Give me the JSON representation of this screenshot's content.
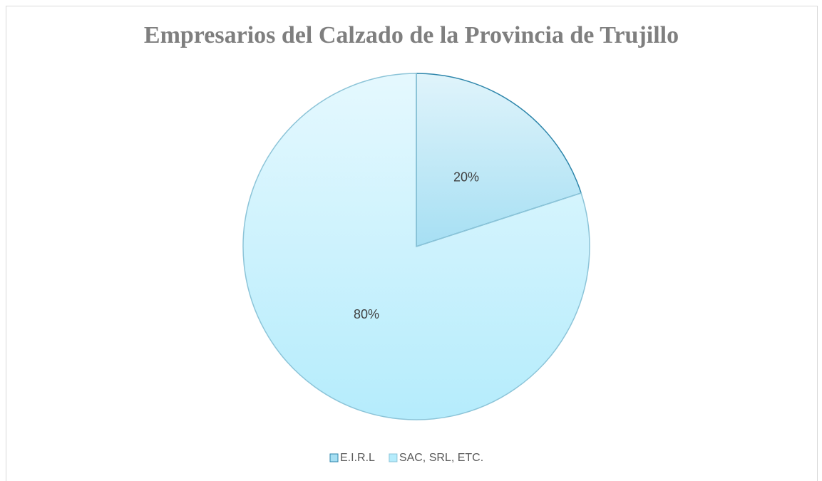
{
  "chart_data": {
    "type": "pie",
    "title": "Empresarios del Calzado de la Provincia de Trujillo",
    "categories": [
      "E.I.R.L",
      "SAC, SRL, ETC."
    ],
    "values": [
      20,
      80
    ],
    "value_labels": [
      "20%",
      "80%"
    ],
    "colors": [
      "#a6dff3",
      "#b5ecfc"
    ],
    "stroke_colors": [
      "#2e86ab",
      "#8cc4d8"
    ],
    "legend": "bottom"
  }
}
